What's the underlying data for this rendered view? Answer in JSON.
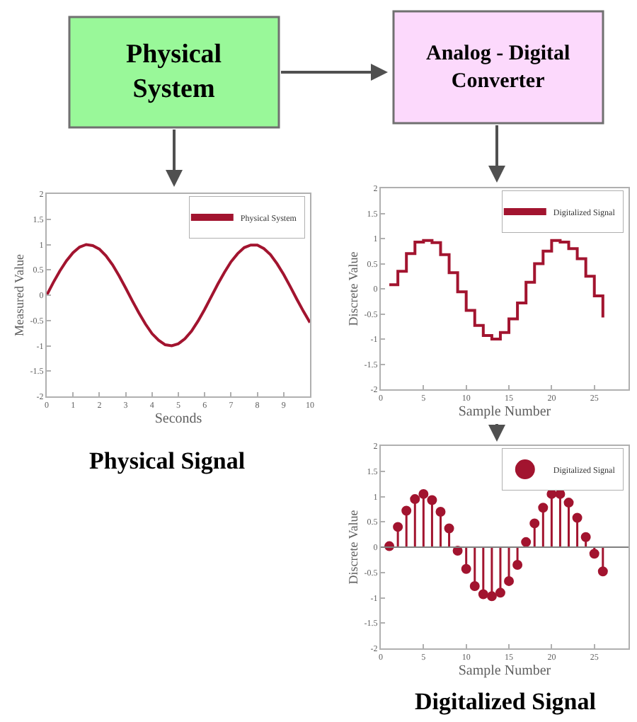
{
  "chart_data": [
    {
      "type": "other",
      "categories": [
        "Physical System",
        "Analog - Digital Converter"
      ],
      "colors": [
        "#99f899",
        "#fcd9fc"
      ]
    },
    {
      "type": "line",
      "xlabel": "Seconds",
      "ylabel": "Measured Value",
      "xlim": [
        0,
        10
      ],
      "xticks": [
        0,
        1,
        2,
        3,
        4,
        5,
        6,
        7,
        8,
        9,
        10
      ],
      "ylim": [
        -2,
        2
      ],
      "yticks": [
        -2,
        -1.5,
        -1,
        -0.5,
        0,
        0.5,
        1,
        1.5,
        2
      ],
      "grid": false,
      "legend": "top right",
      "marker": "none",
      "annotations": [
        "Physical Signal"
      ],
      "x": [
        0,
        0.25,
        0.5,
        0.75,
        1,
        1.25,
        1.5,
        1.75,
        2,
        2.25,
        2.5,
        2.75,
        3,
        3.25,
        3.5,
        3.75,
        4,
        4.25,
        4.5,
        4.75,
        5,
        5.25,
        5.5,
        5.75,
        6,
        6.25,
        6.5,
        6.75,
        7,
        7.25,
        7.5,
        7.75,
        8,
        8.25,
        8.5,
        8.75,
        9,
        9.25,
        9.5,
        9.75,
        10
      ],
      "series": [
        {
          "name": "Physical System",
          "color": "#a2142f",
          "values": [
            0,
            0.25,
            0.48,
            0.68,
            0.84,
            0.95,
            1.0,
            0.98,
            0.91,
            0.78,
            0.6,
            0.38,
            0.14,
            -0.11,
            -0.35,
            -0.57,
            -0.76,
            -0.89,
            -0.98,
            -1.0,
            -0.96,
            -0.86,
            -0.71,
            -0.51,
            -0.28,
            -0.03,
            0.22,
            0.45,
            0.66,
            0.82,
            0.94,
            0.99,
            0.99,
            0.92,
            0.8,
            0.62,
            0.41,
            0.17,
            -0.08,
            -0.32,
            -0.54
          ]
        }
      ]
    },
    {
      "type": "step",
      "xlabel": "Sample Number",
      "ylabel": "Discrete Value",
      "xlim": [
        0,
        29
      ],
      "xticks": [
        0,
        5,
        10,
        15,
        20,
        25
      ],
      "ylim": [
        -2,
        2
      ],
      "yticks": [
        -2,
        -1.5,
        -1,
        -0.5,
        0,
        0.5,
        1,
        1.5,
        2
      ],
      "grid": false,
      "legend": "top right",
      "marker": "none",
      "x": [
        1,
        2,
        3,
        4,
        5,
        6,
        7,
        8,
        9,
        10,
        11,
        12,
        13,
        14,
        15,
        16,
        17,
        18,
        19,
        20,
        21,
        22,
        23,
        24,
        25,
        26
      ],
      "series": [
        {
          "name": "Digitalized Signal",
          "color": "#a2142f",
          "values": [
            0.08,
            0.35,
            0.7,
            0.93,
            0.96,
            0.92,
            0.68,
            0.32,
            -0.06,
            -0.43,
            -0.73,
            -0.93,
            -1.0,
            -0.87,
            -0.6,
            -0.28,
            0.13,
            0.5,
            0.75,
            0.96,
            0.93,
            0.8,
            0.6,
            0.25,
            -0.14,
            -0.57
          ]
        }
      ]
    },
    {
      "type": "lollipop",
      "xlabel": "Sample Number",
      "ylabel": "Discrete Value",
      "xlim": [
        0,
        29
      ],
      "xticks": [
        0,
        5,
        10,
        15,
        20,
        25
      ],
      "ylim": [
        -2,
        2
      ],
      "yticks": [
        -2,
        -1.5,
        -1,
        -0.5,
        0,
        0.5,
        1,
        1.5,
        2
      ],
      "grid": false,
      "legend": "top right",
      "marker": "circle",
      "annotations": [
        "Digitalized Signal"
      ],
      "ref_lines": [
        {
          "axis": "y",
          "value": 0,
          "color": "#808080"
        }
      ],
      "x": [
        1,
        2,
        3,
        4,
        5,
        6,
        7,
        8,
        9,
        10,
        11,
        12,
        13,
        14,
        15,
        16,
        17,
        18,
        19,
        20,
        21,
        22,
        23,
        24,
        25,
        26
      ],
      "series": [
        {
          "name": "Digitalized Signal",
          "color": "#a2142f",
          "values": [
            0.02,
            0.4,
            0.72,
            0.95,
            1.05,
            0.93,
            0.7,
            0.37,
            -0.07,
            -0.43,
            -0.77,
            -0.93,
            -0.97,
            -0.9,
            -0.67,
            -0.35,
            0.1,
            0.47,
            0.78,
            1.05,
            1.05,
            0.88,
            0.58,
            0.2,
            -0.13,
            -0.48
          ]
        }
      ]
    }
  ]
}
